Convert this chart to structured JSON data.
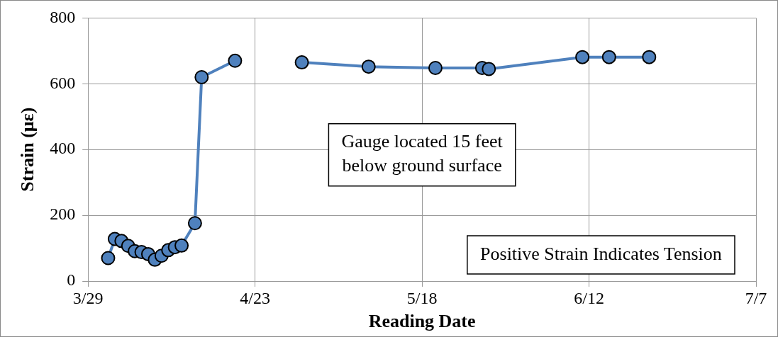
{
  "chart_data": {
    "type": "line",
    "xlabel": "Reading Date",
    "ylabel": "Strain (με)",
    "x": [
      "--04-01",
      "--04-02",
      "--04-03",
      "--04-04",
      "--04-05",
      "--04-06",
      "--04-07",
      "--04-08",
      "--04-09",
      "--04-10",
      "--04-11",
      "--04-12",
      "--04-14",
      "--04-15",
      "--04-20",
      "--04-25",
      "--04-30",
      "--05-10",
      "--05-20",
      "--05-27",
      "--05-28",
      "--06-11",
      "--06-15",
      "--06-21"
    ],
    "series": [
      {
        "color": "#4f81bd",
        "values": [
          70,
          128,
          122,
          107,
          91,
          88,
          82,
          65,
          77,
          94,
          103,
          108,
          176,
          620,
          670,
          null,
          665,
          652,
          648,
          648,
          645,
          681,
          681,
          681
        ]
      }
    ],
    "xlim": [
      "--03-29",
      "--07-07"
    ],
    "xticks": [
      {
        "value": "--03-29",
        "label": "3/29"
      },
      {
        "value": "--04-23",
        "label": "4/23"
      },
      {
        "value": "--05-18",
        "label": "5/18"
      },
      {
        "value": "--06-12",
        "label": "6/12"
      },
      {
        "value": "--07-07",
        "label": "7/7"
      }
    ],
    "ylim": [
      0,
      800
    ],
    "yticks": [
      0,
      200,
      400,
      600,
      800
    ],
    "grid": true,
    "legend": false,
    "marker": "circle",
    "line_style": "solid",
    "annotations": [
      "Gauge located 15 feet\nbelow ground surface",
      "Positive Strain Indicates Tension"
    ]
  }
}
